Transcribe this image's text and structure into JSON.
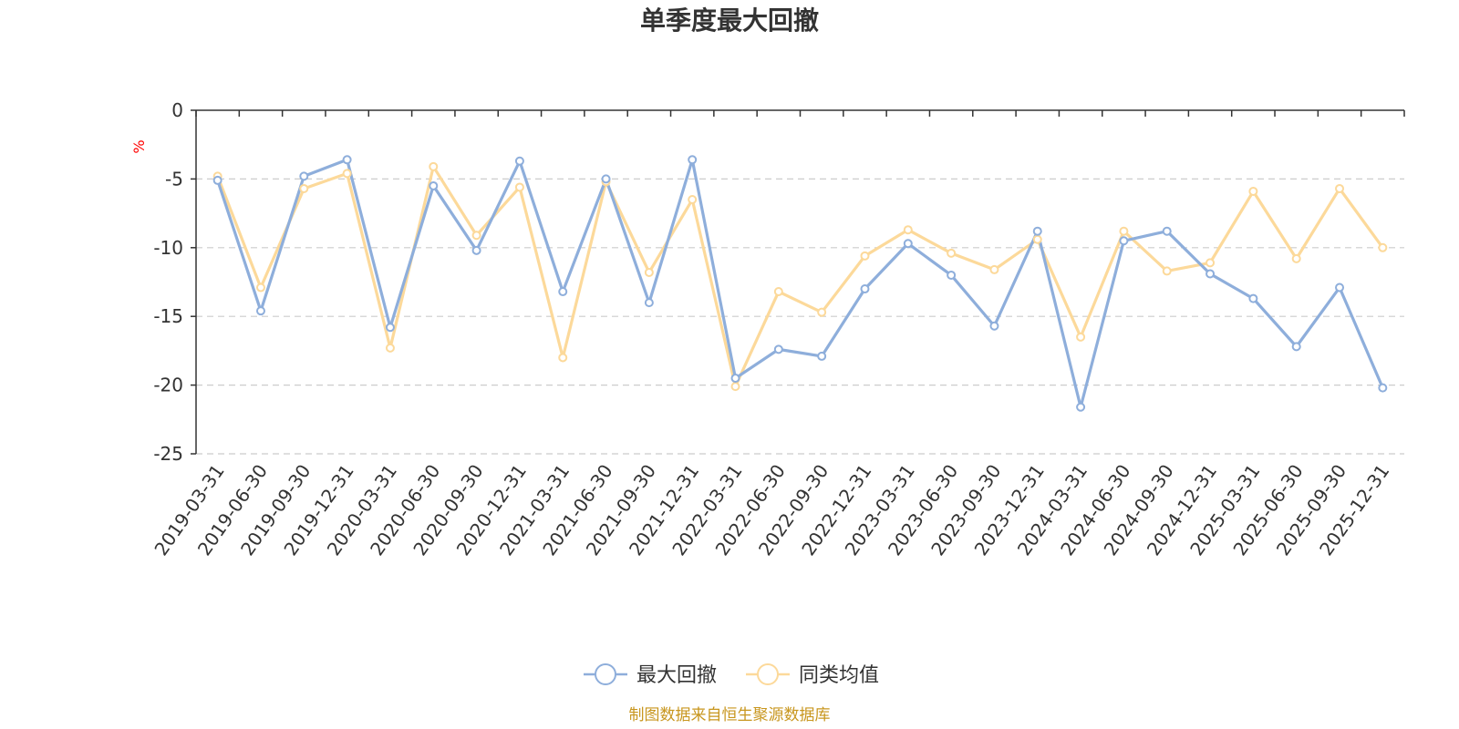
{
  "chart_data": {
    "type": "line",
    "title": "单季度最大回撤",
    "ylabel": "%",
    "ylim": [
      -25,
      0
    ],
    "yticks": [
      0,
      -5,
      -10,
      -15,
      -20,
      -25
    ],
    "ytick_labels": [
      "0",
      "-5",
      "-10",
      "-15",
      "-20",
      "-25"
    ],
    "grid": true,
    "legend_position": "bottom-center",
    "categories": [
      "2019-03-31",
      "2019-06-30",
      "2019-09-30",
      "2019-12-31",
      "2020-03-31",
      "2020-06-30",
      "2020-09-30",
      "2020-12-31",
      "2021-03-31",
      "2021-06-30",
      "2021-09-30",
      "2021-12-31",
      "2022-03-31",
      "2022-06-30",
      "2022-09-30",
      "2022-12-31",
      "2023-03-31",
      "2023-06-30",
      "2023-09-30",
      "2023-12-31",
      "2024-03-31",
      "2024-06-30",
      "2024-09-30",
      "2024-12-31",
      "2025-03-31",
      "2025-06-30",
      "2025-09-30",
      "2025-12-31"
    ],
    "series": [
      {
        "name": "最大回撤",
        "color": "#8eaedb",
        "values": [
          -5.1,
          -14.6,
          -4.8,
          -3.6,
          -15.8,
          -5.5,
          -10.2,
          -3.7,
          -13.2,
          -5.0,
          -14.0,
          -3.6,
          -19.5,
          -17.4,
          -17.9,
          -13.0,
          -9.7,
          -12.0,
          -15.7,
          -8.8,
          -21.6,
          -9.5,
          -8.8,
          -11.9,
          -13.7,
          -17.2,
          -12.9,
          -20.2
        ]
      },
      {
        "name": "同类均值",
        "color": "#fcd99a",
        "values": [
          -4.8,
          -12.9,
          -5.7,
          -4.6,
          -17.3,
          -4.1,
          -9.1,
          -5.6,
          -18.0,
          -5.2,
          -11.8,
          -6.5,
          -20.1,
          -13.2,
          -14.7,
          -10.6,
          -8.7,
          -10.4,
          -11.6,
          -9.4,
          -16.5,
          -8.8,
          -11.7,
          -11.1,
          -5.9,
          -10.8,
          -5.7,
          -10.0
        ]
      }
    ]
  },
  "footer": {
    "source": "制图数据来自恒生聚源数据库"
  }
}
